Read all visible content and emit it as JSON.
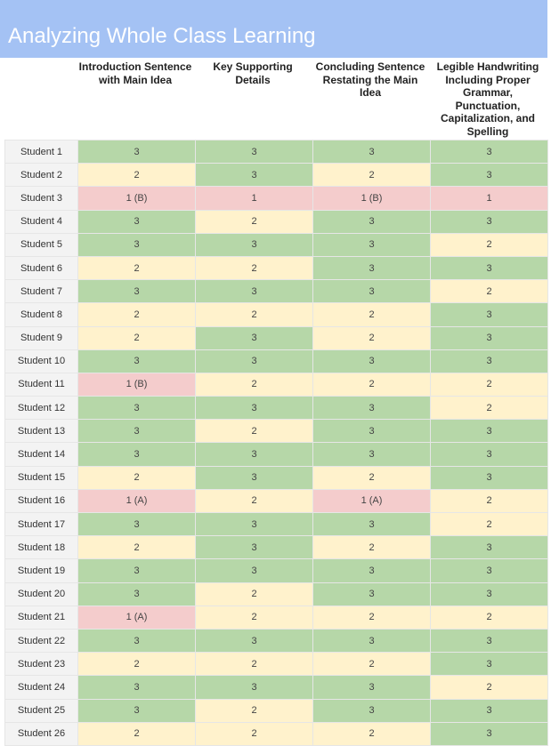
{
  "title": "Analyzing Whole Class Learning",
  "columns": [
    "Introduction Sentence with Main Idea",
    "Key Supporting Details",
    "Concluding Sentence Restating the Main Idea",
    "Legible Handwriting Including Proper Grammar, Punctuation, Capitalization, and Spelling"
  ],
  "colors": {
    "score_3": "#b6d7a8",
    "score_2": "#fff2cc",
    "score_1": "#f4cccc",
    "banner": "#a4c2f4"
  },
  "rows": [
    {
      "student": "Student 1",
      "scores": [
        "3",
        "3",
        "3",
        "3"
      ]
    },
    {
      "student": "Student 2",
      "scores": [
        "2",
        "3",
        "2",
        "3"
      ]
    },
    {
      "student": "Student 3",
      "scores": [
        "1 (B)",
        "1",
        "1 (B)",
        "1"
      ]
    },
    {
      "student": "Student 4",
      "scores": [
        "3",
        "2",
        "3",
        "3"
      ]
    },
    {
      "student": "Student 5",
      "scores": [
        "3",
        "3",
        "3",
        "2"
      ]
    },
    {
      "student": "Student 6",
      "scores": [
        "2",
        "2",
        "3",
        "3"
      ]
    },
    {
      "student": "Student 7",
      "scores": [
        "3",
        "3",
        "3",
        "2"
      ]
    },
    {
      "student": "Student 8",
      "scores": [
        "2",
        "2",
        "2",
        "3"
      ]
    },
    {
      "student": "Student 9",
      "scores": [
        "2",
        "3",
        "2",
        "3"
      ]
    },
    {
      "student": "Student 10",
      "scores": [
        "3",
        "3",
        "3",
        "3"
      ]
    },
    {
      "student": "Student 11",
      "scores": [
        "1 (B)",
        "2",
        "2",
        "2"
      ]
    },
    {
      "student": "Student 12",
      "scores": [
        "3",
        "3",
        "3",
        "2"
      ]
    },
    {
      "student": "Student 13",
      "scores": [
        "3",
        "2",
        "3",
        "3"
      ]
    },
    {
      "student": "Student 14",
      "scores": [
        "3",
        "3",
        "3",
        "3"
      ]
    },
    {
      "student": "Student 15",
      "scores": [
        "2",
        "3",
        "2",
        "3"
      ]
    },
    {
      "student": "Student 16",
      "scores": [
        "1 (A)",
        "2",
        "1 (A)",
        "2"
      ]
    },
    {
      "student": "Student 17",
      "scores": [
        "3",
        "3",
        "3",
        "2"
      ]
    },
    {
      "student": "Student 18",
      "scores": [
        "2",
        "3",
        "2",
        "3"
      ]
    },
    {
      "student": "Student 19",
      "scores": [
        "3",
        "3",
        "3",
        "3"
      ]
    },
    {
      "student": "Student 20",
      "scores": [
        "3",
        "2",
        "3",
        "3"
      ]
    },
    {
      "student": "Student 21",
      "scores": [
        "1 (A)",
        "2",
        "2",
        "2"
      ]
    },
    {
      "student": "Student 22",
      "scores": [
        "3",
        "3",
        "3",
        "3"
      ]
    },
    {
      "student": "Student 23",
      "scores": [
        "2",
        "2",
        "2",
        "3"
      ]
    },
    {
      "student": "Student 24",
      "scores": [
        "3",
        "3",
        "3",
        "2"
      ]
    },
    {
      "student": "Student 25",
      "scores": [
        "3",
        "2",
        "3",
        "3"
      ]
    },
    {
      "student": "Student 26",
      "scores": [
        "2",
        "2",
        "2",
        "3"
      ]
    }
  ]
}
